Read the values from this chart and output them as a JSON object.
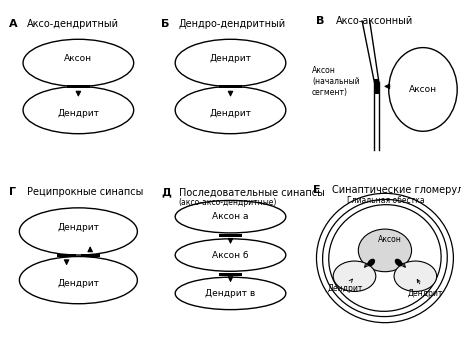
{
  "bg_color": "#ffffff",
  "title_fontsize": 7.0,
  "label_fontsize": 6.5,
  "small_fontsize": 5.5,
  "panels": {
    "A": {
      "label": "А",
      "title": "Аксо-дендритный",
      "top_text": "Аксон",
      "bottom_text": "Дендрит"
    },
    "B": {
      "label": "Б",
      "title": "Дендро-дендритный",
      "top_text": "Дендрит",
      "bottom_text": "Дендрит"
    },
    "C": {
      "label": "В",
      "title": "Аксо-аксонный",
      "left_text": "Аксон\n(начальный\nсегмент)",
      "right_text": "Аксон"
    },
    "D": {
      "label": "Г",
      "title": "Реципрокные синапсы",
      "top_text": "Дендрит",
      "bottom_text": "Дендрит"
    },
    "E": {
      "label": "Д",
      "title": "Последовательные синапсы",
      "subtitle": "(аксо-аксо-дендритные)",
      "texts": [
        "Аксон а",
        "Аксон б",
        "Дендрит в"
      ]
    },
    "F": {
      "label": "Е",
      "title": "Синаптические гломерулы",
      "subtitle": "Глиальная обёстка",
      "axon_text": "Аксон",
      "dendrite1_text": "Дендрит",
      "dendrite2_text": "Дендрит"
    }
  }
}
